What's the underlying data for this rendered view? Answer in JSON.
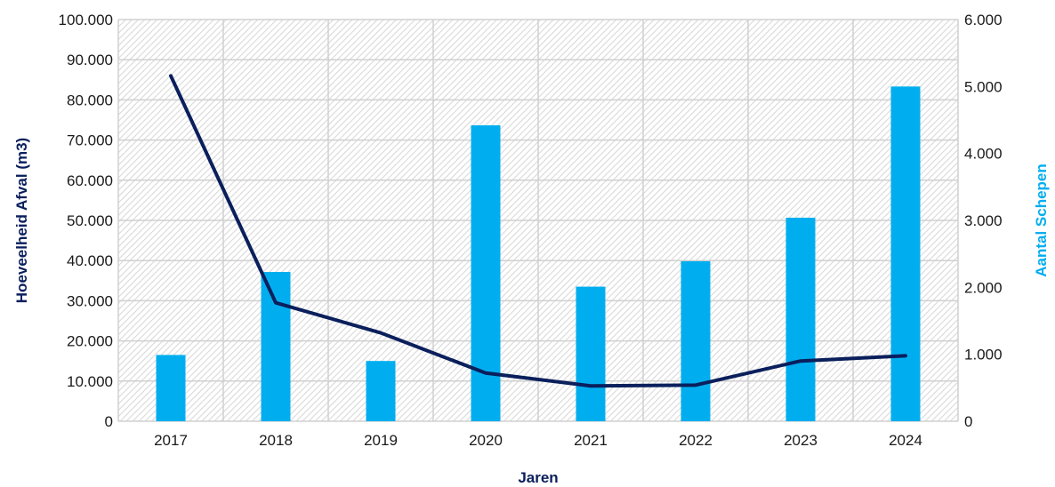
{
  "chart_data": {
    "type": "bar+line",
    "categories": [
      "2017",
      "2018",
      "2019",
      "2020",
      "2021",
      "2022",
      "2023",
      "2024"
    ],
    "series": [
      {
        "type": "bar",
        "axis": "right",
        "color": "#00aeef",
        "values": [
          990,
          2230,
          900,
          4420,
          2010,
          2390,
          3040,
          5000
        ]
      },
      {
        "type": "line",
        "axis": "left",
        "color": "#0a1f5c",
        "values": [
          86000,
          29500,
          22000,
          12000,
          8800,
          9000,
          15000,
          16300
        ]
      }
    ],
    "xlabel": "Jaren",
    "ylabel_left": "Hoeveelheid Afval (m3)",
    "ylabel_right": "Aantal Schepen",
    "ylim_left": [
      0,
      100000
    ],
    "ylim_right": [
      0,
      6000
    ],
    "yticks_left": [
      "0",
      "10.000",
      "20.000",
      "30.000",
      "40.000",
      "50.000",
      "60.000",
      "70.000",
      "80.000",
      "90.000",
      "100.000"
    ],
    "yticks_right": [
      "0",
      "1.000",
      "2.000",
      "3.000",
      "4.000",
      "5.000",
      "6.000"
    ],
    "grid": true,
    "plot_background": "hatched",
    "left_title_color": "#0a1f5c",
    "right_title_color": "#00aeef"
  }
}
